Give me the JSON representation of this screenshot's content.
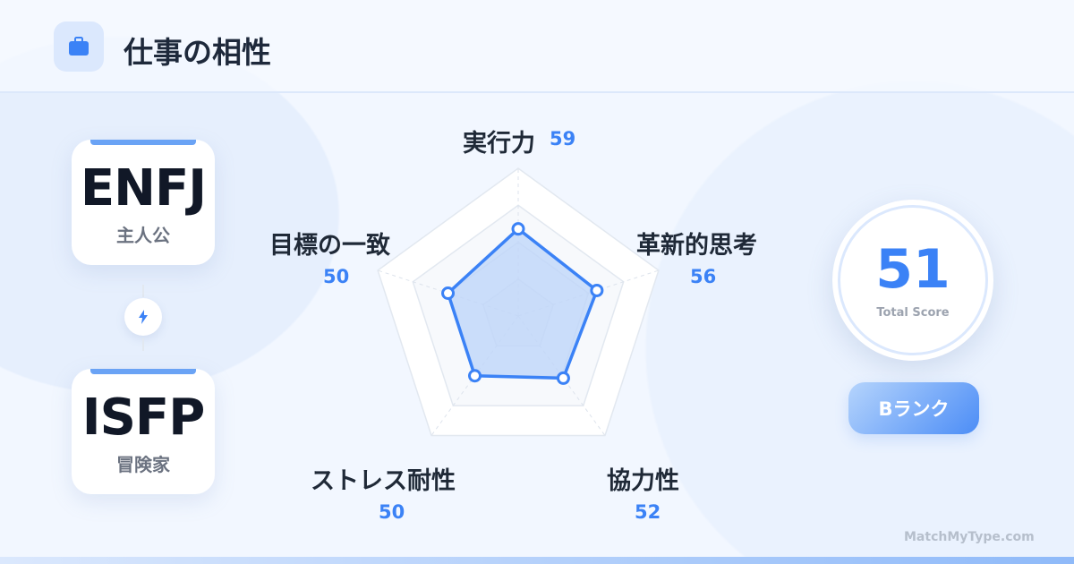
{
  "header": {
    "title": "仕事の相性",
    "icon": "briefcase-icon"
  },
  "types": [
    {
      "code": "ENFJ",
      "nickname": "主人公"
    },
    {
      "code": "ISFP",
      "nickname": "冒険家"
    }
  ],
  "link_icon": "lightning-icon",
  "chart_data": {
    "type": "radar",
    "categories": [
      "実行力",
      "革新的思考",
      "協力性",
      "ストレス耐性",
      "目標の一致"
    ],
    "values": [
      59,
      56,
      52,
      50,
      50
    ],
    "range": [
      0,
      100
    ],
    "colors": {
      "line": "#3b82f6",
      "fill": "#bcd4fa"
    }
  },
  "score": {
    "value": "51",
    "label": "Total Score"
  },
  "rank": "Bランク",
  "footer": "MatchMyType.com",
  "colors": {
    "accent": "#3b82f6"
  }
}
